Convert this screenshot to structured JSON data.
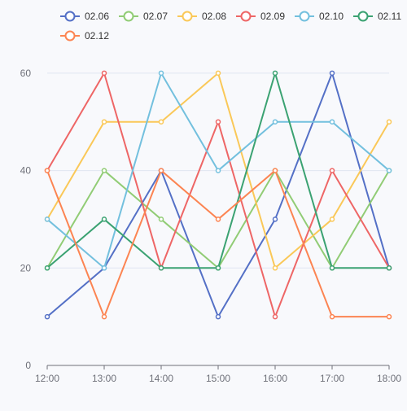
{
  "chart_data": {
    "type": "line",
    "x": [
      "12:00",
      "13:00",
      "14:00",
      "15:00",
      "16:00",
      "17:00",
      "18:00"
    ],
    "ylim": [
      0,
      70
    ],
    "y_ticks": [
      0,
      20,
      40,
      60
    ],
    "grid": true,
    "legend_position": "top",
    "series": [
      {
        "name": "02.06",
        "color": "#5470c6",
        "values": [
          10,
          20,
          40,
          10,
          30,
          60,
          20
        ]
      },
      {
        "name": "02.07",
        "color": "#91cc75",
        "values": [
          20,
          40,
          30,
          20,
          40,
          20,
          40
        ]
      },
      {
        "name": "02.08",
        "color": "#fac858",
        "values": [
          30,
          50,
          50,
          60,
          20,
          30,
          50
        ]
      },
      {
        "name": "02.09",
        "color": "#ee6666",
        "values": [
          40,
          60,
          20,
          50,
          10,
          40,
          20
        ]
      },
      {
        "name": "02.10",
        "color": "#73c0de",
        "values": [
          30,
          20,
          60,
          40,
          50,
          50,
          40
        ]
      },
      {
        "name": "02.11",
        "color": "#3ba272",
        "values": [
          20,
          30,
          20,
          20,
          60,
          20,
          20
        ]
      },
      {
        "name": "02.12",
        "color": "#fc8452",
        "values": [
          40,
          10,
          40,
          30,
          40,
          10,
          10
        ]
      }
    ]
  }
}
